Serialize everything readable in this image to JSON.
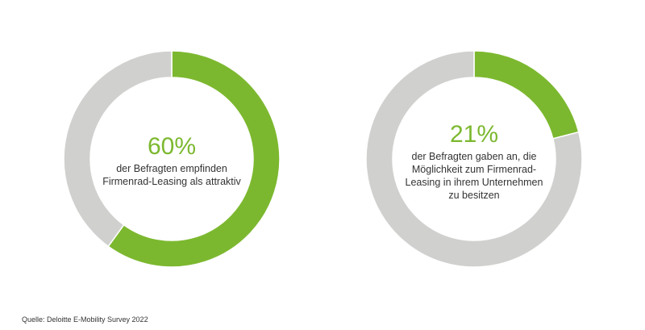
{
  "colors": {
    "accent": "#7cb82f",
    "rest": "#d0d0ce"
  },
  "chart_data": [
    {
      "type": "pie",
      "variant": "donut",
      "values": [
        60,
        40
      ],
      "labels": [
        "attraktiv",
        "rest"
      ],
      "center_value": "60%",
      "center_text": "der Befragten empfinden Firmenrad-Leasing als attraktiv",
      "center_lines": [
        "der Befragten empfinden",
        "Firmenrad-Leasing als attraktiv"
      ]
    },
    {
      "type": "pie",
      "variant": "donut",
      "values": [
        21,
        79
      ],
      "labels": [
        "besitzen",
        "rest"
      ],
      "center_value": "21%",
      "center_text": "der Befragten gaben an, die Möglichkeit zum Firmenrad-Leasing in ihrem Unternehmen zu besitzen",
      "center_lines": [
        "der Befragten gaben an, die",
        "Möglichkeit zum Firmenrad-",
        "Leasing in ihrem Unternehmen",
        "zu besitzen"
      ]
    }
  ],
  "source": "Quelle: Deloitte E-Mobility Survey 2022"
}
